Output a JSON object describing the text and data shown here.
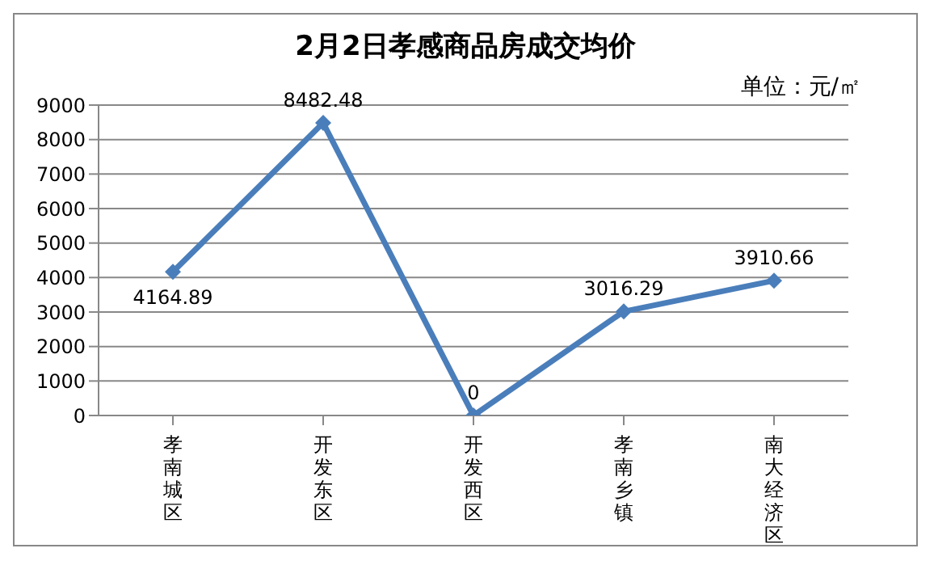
{
  "chart_data": {
    "type": "line",
    "title": "2月2日孝感商品房成交均价",
    "annotations": [
      "单位：元/㎡"
    ],
    "categories": [
      "孝南城区",
      "开发东区",
      "开发西区",
      "孝南乡镇",
      "南大经济区"
    ],
    "series": [
      {
        "color": "#4a7ebb",
        "values": [
          4164.89,
          8482.48,
          0,
          3016.29,
          3910.66
        ]
      }
    ],
    "ylim": [
      0,
      9000
    ],
    "yticks": [
      0,
      1000,
      2000,
      3000,
      4000,
      5000,
      6000,
      7000,
      8000,
      9000
    ],
    "grid": "y",
    "legend": false,
    "marker": "diamond",
    "line_style": "solid",
    "data_labels": true
  }
}
